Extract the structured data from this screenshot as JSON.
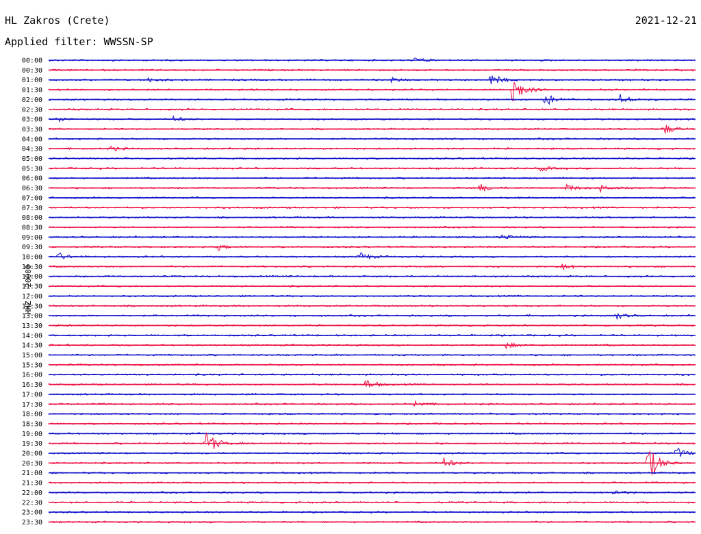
{
  "header": {
    "station": "HL Zakros (Crete)",
    "date": "2021-12-21",
    "filter": "Applied filter: WWSSN-SP"
  },
  "chart_data": {
    "type": "line",
    "title": "HL Zakros (Crete)",
    "ylabel": "HHZ - 20000",
    "colors": {
      "blue": "#1111cc",
      "red": "#ee1144"
    },
    "row_labels": [
      "00:00",
      "00:30",
      "01:00",
      "01:30",
      "02:00",
      "02:30",
      "03:00",
      "03:30",
      "04:00",
      "04:30",
      "05:00",
      "05:30",
      "06:00",
      "06:30",
      "07:00",
      "07:30",
      "08:00",
      "08:30",
      "09:00",
      "09:30",
      "10:00",
      "10:30",
      "11:00",
      "11:30",
      "12:00",
      "12:30",
      "13:00",
      "13:30",
      "14:00",
      "14:30",
      "15:00",
      "15:30",
      "16:00",
      "16:30",
      "17:00",
      "17:30",
      "18:00",
      "18:30",
      "19:00",
      "19:30",
      "20:00",
      "20:30",
      "21:00",
      "21:30",
      "22:00",
      "22:30",
      "23:00",
      "23:30"
    ],
    "row_colors": [
      "blue",
      "red",
      "blue",
      "red",
      "blue",
      "red",
      "blue",
      "red",
      "blue",
      "red",
      "blue",
      "red",
      "blue",
      "red",
      "blue",
      "red",
      "blue",
      "red",
      "blue",
      "red",
      "blue",
      "red",
      "blue",
      "red",
      "blue",
      "red",
      "blue",
      "red",
      "blue",
      "red",
      "blue",
      "red",
      "blue",
      "red",
      "blue",
      "red",
      "blue",
      "red",
      "blue",
      "red",
      "blue",
      "red",
      "blue",
      "red",
      "blue",
      "red",
      "blue",
      "red"
    ],
    "events": [
      {
        "row": 0,
        "minute": 17.0,
        "amp": 0.4
      },
      {
        "row": 2,
        "minute": 4.6,
        "amp": 0.3
      },
      {
        "row": 2,
        "minute": 15.9,
        "amp": 0.3
      },
      {
        "row": 2,
        "minute": 20.5,
        "amp": 1.0
      },
      {
        "row": 3,
        "minute": 21.5,
        "amp": 2.4
      },
      {
        "row": 4,
        "minute": 23.0,
        "amp": 1.0
      },
      {
        "row": 4,
        "minute": 26.5,
        "amp": 0.8
      },
      {
        "row": 6,
        "minute": 0.4,
        "amp": 0.4
      },
      {
        "row": 6,
        "minute": 5.8,
        "amp": 0.4
      },
      {
        "row": 7,
        "minute": 28.5,
        "amp": 0.9
      },
      {
        "row": 9,
        "minute": 2.8,
        "amp": 0.4
      },
      {
        "row": 11,
        "minute": 22.8,
        "amp": 0.4
      },
      {
        "row": 13,
        "minute": 20.0,
        "amp": 0.6
      },
      {
        "row": 13,
        "minute": 24.0,
        "amp": 0.6
      },
      {
        "row": 13,
        "minute": 25.6,
        "amp": 0.5
      },
      {
        "row": 18,
        "minute": 21.0,
        "amp": 0.5
      },
      {
        "row": 19,
        "minute": 7.8,
        "amp": 0.5
      },
      {
        "row": 20,
        "minute": 0.4,
        "amp": 0.6
      },
      {
        "row": 20,
        "minute": 14.4,
        "amp": 0.7
      },
      {
        "row": 21,
        "minute": 23.8,
        "amp": 0.5
      },
      {
        "row": 26,
        "minute": 26.3,
        "amp": 0.5
      },
      {
        "row": 29,
        "minute": 21.2,
        "amp": 0.5
      },
      {
        "row": 33,
        "minute": 14.7,
        "amp": 0.8
      },
      {
        "row": 35,
        "minute": 17.0,
        "amp": 0.5
      },
      {
        "row": 39,
        "minute": 7.3,
        "amp": 2.0
      },
      {
        "row": 40,
        "minute": 29.1,
        "amp": 0.9
      },
      {
        "row": 41,
        "minute": 18.3,
        "amp": 0.8
      },
      {
        "row": 41,
        "minute": 27.8,
        "amp": 3.0
      },
      {
        "row": 44,
        "minute": 26.2,
        "amp": 0.4
      }
    ]
  }
}
